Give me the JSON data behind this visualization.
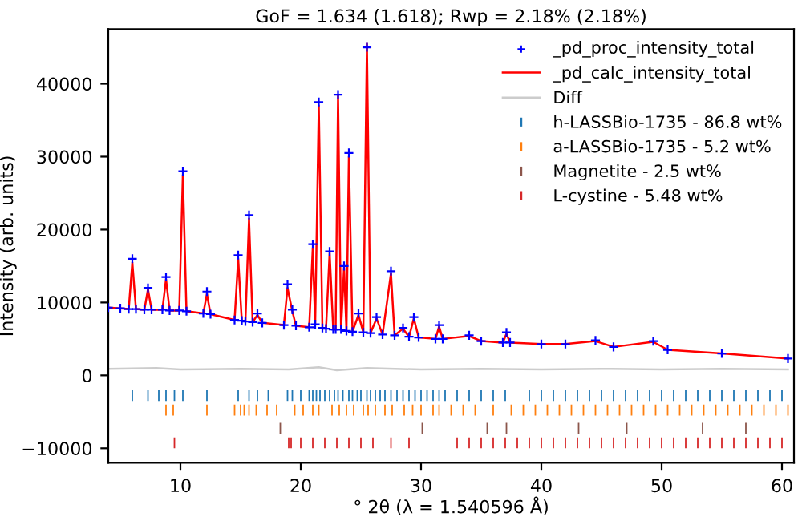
{
  "chart_data": {
    "type": "line",
    "title": "GoF = 1.634 (1.618); Rwp = 2.18% (2.18%)",
    "xlabel": "° 2θ (λ = 1.540596 Å)",
    "ylabel": "Intensity (arb. units)",
    "xlim": [
      4,
      61
    ],
    "ylim": [
      -12000,
      47500
    ],
    "xticks": [
      10,
      20,
      30,
      40,
      50,
      60
    ],
    "yticks": [
      -10000,
      0,
      10000,
      20000,
      30000,
      40000
    ],
    "grid": false,
    "legend": "top right",
    "series": [
      {
        "name": "_pd_proc_intensity_total",
        "type": "scatter",
        "marker": "cross",
        "color": "#0000ff",
        "x": [
          4,
          5,
          5.7,
          6.0,
          6.3,
          7.0,
          7.3,
          7.6,
          8.5,
          8.8,
          9.1,
          9.9,
          10.2,
          10.5,
          11.9,
          12.2,
          12.5,
          14.5,
          14.8,
          15.1,
          15.4,
          15.7,
          16.0,
          16.4,
          16.8,
          18.6,
          18.9,
          19.3,
          19.6,
          20.7,
          21.0,
          21.2,
          21.5,
          21.8,
          22.1,
          22.4,
          22.7,
          22.9,
          23.1,
          23.35,
          23.6,
          23.8,
          24.0,
          24.3,
          24.8,
          25.2,
          25.5,
          25.8,
          26.3,
          26.8,
          27.5,
          27.8,
          28.5,
          29.0,
          29.4,
          29.8,
          31.2,
          31.5,
          31.8,
          34.0,
          35.0,
          36.8,
          37.1,
          37.4,
          40,
          42,
          44.5,
          46,
          49.3,
          50.5,
          55,
          60.5
        ],
        "values": [
          9300,
          9200,
          9100,
          16000,
          9100,
          9000,
          12000,
          9000,
          9000,
          13500,
          8900,
          8900,
          28000,
          8800,
          8500,
          11500,
          8400,
          7600,
          16500,
          7500,
          7400,
          22000,
          7300,
          8500,
          7200,
          6900,
          12500,
          9000,
          6800,
          6600,
          18000,
          7000,
          37500,
          6500,
          6400,
          17000,
          6300,
          6300,
          38500,
          6300,
          15000,
          6100,
          30500,
          6000,
          8500,
          5900,
          45000,
          5800,
          8000,
          5600,
          14300,
          5500,
          6500,
          5300,
          8000,
          5200,
          5000,
          6900,
          5000,
          5500,
          4700,
          4500,
          5900,
          4500,
          4300,
          4300,
          4800,
          3900,
          4700,
          3500,
          3000,
          2300
        ]
      },
      {
        "name": "_pd_calc_intensity_total",
        "color": "#ff0000",
        "x": [
          4,
          5,
          5.7,
          6.0,
          6.3,
          7.0,
          7.3,
          7.6,
          8.5,
          8.8,
          9.1,
          9.9,
          10.2,
          10.5,
          11.9,
          12.2,
          12.5,
          14.5,
          14.8,
          15.1,
          15.4,
          15.7,
          16.0,
          16.4,
          16.8,
          18.6,
          18.9,
          19.3,
          19.6,
          20.7,
          21.0,
          21.2,
          21.5,
          21.8,
          22.1,
          22.4,
          22.7,
          22.9,
          23.1,
          23.35,
          23.6,
          23.8,
          24.0,
          24.3,
          24.8,
          25.2,
          25.5,
          25.8,
          26.3,
          26.8,
          27.5,
          27.8,
          28.5,
          29.0,
          29.4,
          29.8,
          31.2,
          31.5,
          31.8,
          34.0,
          35.0,
          36.8,
          37.1,
          37.4,
          40,
          42,
          44.5,
          46,
          49.3,
          50.5,
          55,
          60.5
        ],
        "values": [
          9300,
          9200,
          9100,
          15500,
          9100,
          9000,
          11800,
          9000,
          9000,
          13200,
          8900,
          8900,
          27500,
          8800,
          8500,
          11200,
          8400,
          7600,
          16000,
          7500,
          7400,
          21500,
          7300,
          8300,
          7200,
          6900,
          12000,
          8800,
          6800,
          6600,
          17500,
          7000,
          37000,
          6500,
          6400,
          16800,
          6300,
          6300,
          38500,
          6300,
          14800,
          6100,
          30000,
          6000,
          8300,
          5900,
          45500,
          5800,
          7800,
          5600,
          14000,
          5500,
          6400,
          5300,
          7800,
          5200,
          5000,
          6700,
          5000,
          5400,
          4700,
          4500,
          5700,
          4500,
          4300,
          4300,
          4700,
          3900,
          4600,
          3500,
          3000,
          2300
        ]
      },
      {
        "name": "Diff",
        "color": "#cccccc",
        "x": [
          4,
          8,
          10,
          15,
          19,
          21.5,
          23,
          25.5,
          30,
          35,
          40,
          45,
          50,
          55,
          60.5
        ],
        "values": [
          900,
          1000,
          800,
          900,
          800,
          1100,
          700,
          1000,
          800,
          900,
          800,
          900,
          800,
          900,
          800
        ]
      },
      {
        "name": "h-LASSBio-1735 - 86.8 wt%",
        "type": "bar",
        "color": "#1f77b4",
        "x": [
          6.0,
          7.3,
          8.2,
          8.8,
          9.5,
          10.2,
          12.2,
          14.8,
          15.7,
          16.4,
          17.3,
          18.9,
          19.3,
          20.0,
          20.7,
          21.0,
          21.3,
          21.6,
          22.0,
          22.4,
          22.8,
          23.1,
          23.5,
          24.0,
          24.3,
          24.7,
          25.0,
          25.5,
          25.8,
          26.2,
          26.6,
          27.0,
          27.5,
          28.0,
          28.5,
          29.0,
          29.5,
          30.0,
          30.5,
          31.0,
          31.5,
          32.0,
          33,
          34,
          35,
          36,
          37,
          39,
          40,
          41,
          42,
          43,
          44,
          45,
          46,
          47,
          48,
          49,
          50,
          51,
          52,
          53,
          54,
          55,
          56,
          57,
          58,
          59,
          60
        ],
        "base": [
          -3500,
          -3500,
          -3500,
          -3500,
          -3500,
          -3500,
          -3500,
          -3500,
          -3500,
          -3500,
          -3500,
          -3500,
          -3500,
          -3500,
          -3500,
          -3500,
          -3500,
          -3500,
          -3500,
          -3500,
          -3500,
          -3500,
          -3500,
          -3500,
          -3500,
          -3500,
          -3500,
          -3500,
          -3500,
          -3500,
          -3500,
          -3500,
          -3500,
          -3500,
          -3500,
          -3500,
          -3500,
          -3500,
          -3500,
          -3500,
          -3500,
          -3500,
          -3500,
          -3500,
          -3500,
          -3500,
          -3500,
          -3500,
          -3500,
          -3500,
          -3500,
          -3500,
          -3500,
          -3500,
          -3500,
          -3500,
          -3500,
          -3500,
          -3500,
          -3500,
          -3500,
          -3500,
          -3500,
          -3500,
          -3500,
          -3500,
          -3500,
          -3500,
          -3500
        ],
        "values": [
          1500,
          1500,
          1500,
          1500,
          1500,
          1500,
          1500,
          1500,
          1500,
          1500,
          1500,
          1500,
          1500,
          1500,
          1500,
          1500,
          1500,
          1500,
          1500,
          1500,
          1500,
          1500,
          1500,
          1500,
          1500,
          1500,
          1500,
          1500,
          1500,
          1500,
          1500,
          1500,
          1500,
          1500,
          1500,
          1500,
          1500,
          1500,
          1500,
          1500,
          1500,
          1500,
          1500,
          1500,
          1500,
          1500,
          1500,
          1500,
          1500,
          1500,
          1500,
          1500,
          1500,
          1500,
          1500,
          1500,
          1500,
          1500,
          1500,
          1500,
          1500,
          1500,
          1500,
          1500,
          1500,
          1500,
          1500,
          1500,
          1500
        ]
      },
      {
        "name": "a-LASSBio-1735 - 5.2 wt%",
        "type": "bar",
        "color": "#ff7f0e",
        "x": [
          8.8,
          9.4,
          12.2,
          14.5,
          15.0,
          15.3,
          15.7,
          16.3,
          17.2,
          18.0,
          19.5,
          20.2,
          21.0,
          21.5,
          22.6,
          23.2,
          23.8,
          24.4,
          25.2,
          25.6,
          26.2,
          27.0,
          27.6,
          28.6,
          29.3,
          30.0,
          31,
          31.5,
          32.5,
          33.5,
          34.5,
          36,
          37.5,
          38.5,
          39.5,
          40.5,
          41.5,
          42.5,
          43.5,
          44.5,
          45.5,
          46.5,
          47.5,
          48.5,
          49.5,
          50.5,
          51.5,
          52.5,
          53.5,
          54.5,
          55.5,
          56.5,
          57.5,
          58.5,
          59.5,
          60.5
        ],
        "base": [
          -5500,
          -5500,
          -5500,
          -5500,
          -5500,
          -5500,
          -5500,
          -5500,
          -5500,
          -5500,
          -5500,
          -5500,
          -5500,
          -5500,
          -5500,
          -5500,
          -5500,
          -5500,
          -5500,
          -5500,
          -5500,
          -5500,
          -5500,
          -5500,
          -5500,
          -5500,
          -5500,
          -5500,
          -5500,
          -5500,
          -5500,
          -5500,
          -5500,
          -5500,
          -5500,
          -5500,
          -5500,
          -5500,
          -5500,
          -5500,
          -5500,
          -5500,
          -5500,
          -5500,
          -5500,
          -5500,
          -5500,
          -5500,
          -5500,
          -5500,
          -5500,
          -5500,
          -5500,
          -5500,
          -5500,
          -5500
        ],
        "values": [
          1500,
          1500,
          1500,
          1500,
          1500,
          1500,
          1500,
          1500,
          1500,
          1500,
          1500,
          1500,
          1500,
          1500,
          1500,
          1500,
          1500,
          1500,
          1500,
          1500,
          1500,
          1500,
          1500,
          1500,
          1500,
          1500,
          1500,
          1500,
          1500,
          1500,
          1500,
          1500,
          1500,
          1500,
          1500,
          1500,
          1500,
          1500,
          1500,
          1500,
          1500,
          1500,
          1500,
          1500,
          1500,
          1500,
          1500,
          1500,
          1500,
          1500,
          1500,
          1500,
          1500,
          1500,
          1500,
          1500
        ]
      },
      {
        "name": "Magnetite - 2.5 wt%",
        "type": "bar",
        "color": "#8c564b",
        "x": [
          18.3,
          30.1,
          35.5,
          37.1,
          43.1,
          47.1,
          53.4,
          57.0
        ],
        "base": [
          -8000,
          -8000,
          -8000,
          -8000,
          -8000,
          -8000,
          -8000,
          -8000
        ],
        "values": [
          1500,
          1500,
          1500,
          1500,
          1500,
          1500,
          1500,
          1500
        ]
      },
      {
        "name": "L-cystine - 5.48 wt%",
        "type": "bar",
        "color": "#d62728",
        "x": [
          9.5,
          19.0,
          19.2,
          20.0,
          21.0,
          22.0,
          23.0,
          24.0,
          25.0,
          26.0,
          27.5,
          29.0,
          33,
          34,
          35,
          36,
          37,
          38,
          39,
          40,
          41,
          42,
          43,
          44,
          45,
          46,
          47,
          48,
          49,
          50,
          51,
          52,
          53,
          54,
          55,
          56,
          57,
          58,
          59,
          60
        ],
        "base": [
          -10000,
          -10000,
          -10000,
          -10000,
          -10000,
          -10000,
          -10000,
          -10000,
          -10000,
          -10000,
          -10000,
          -10000,
          -10000,
          -10000,
          -10000,
          -10000,
          -10000,
          -10000,
          -10000,
          -10000,
          -10000,
          -10000,
          -10000,
          -10000,
          -10000,
          -10000,
          -10000,
          -10000,
          -10000,
          -10000,
          -10000,
          -10000,
          -10000,
          -10000,
          -10000,
          -10000,
          -10000,
          -10000,
          -10000,
          -10000
        ],
        "values": [
          1500,
          1500,
          1500,
          1500,
          1500,
          1500,
          1500,
          1500,
          1500,
          1500,
          1500,
          1500,
          1500,
          1500,
          1500,
          1500,
          1500,
          1500,
          1500,
          1500,
          1500,
          1500,
          1500,
          1500,
          1500,
          1500,
          1500,
          1500,
          1500,
          1500,
          1500,
          1500,
          1500,
          1500,
          1500,
          1500,
          1500,
          1500,
          1500,
          1500
        ]
      }
    ]
  }
}
